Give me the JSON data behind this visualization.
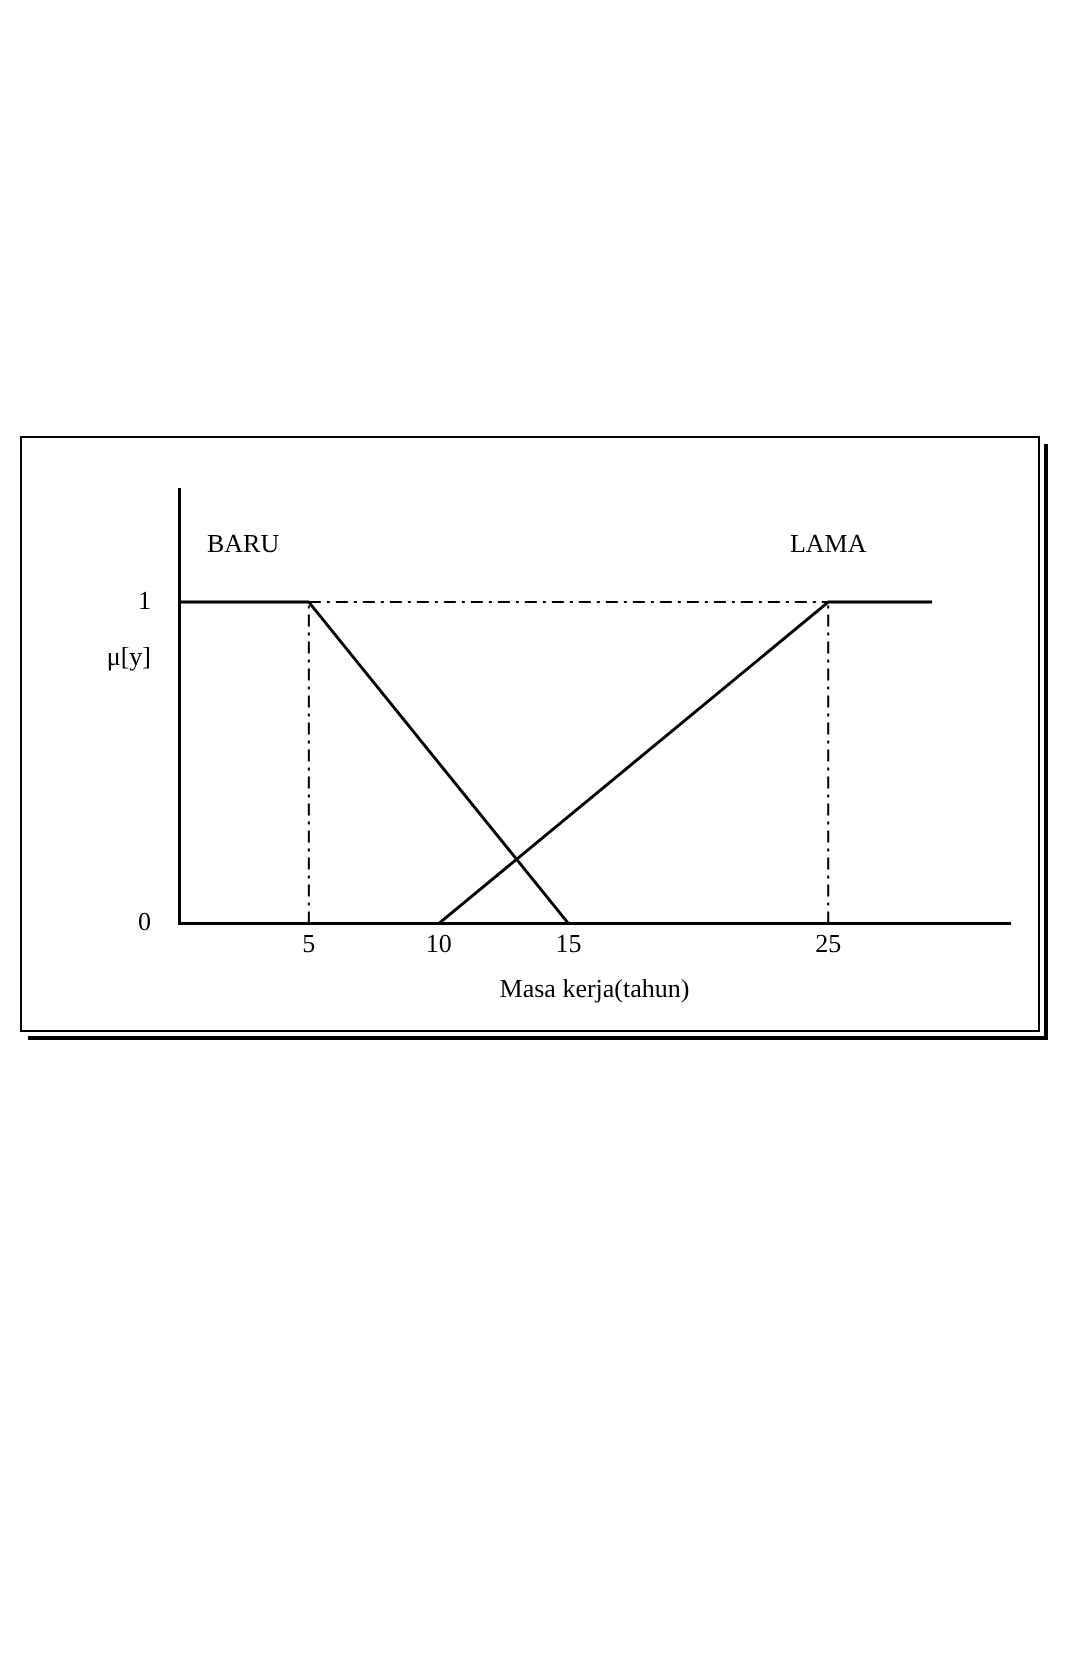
{
  "chart_data": {
    "type": "line",
    "xlabel": "Masa kerja(tahun)",
    "ylabel": "μ[y]",
    "xlim": [
      0,
      32
    ],
    "ylim": [
      0,
      1.35
    ],
    "xticks": [
      5,
      10,
      15,
      25
    ],
    "yticks": [
      0,
      1
    ],
    "grid": false,
    "legend": false,
    "marker": "none",
    "line_style": "solid",
    "series": [
      {
        "name": "BARU",
        "color": "#000000",
        "x": [
          0,
          5,
          15
        ],
        "values": [
          1,
          1,
          0
        ]
      },
      {
        "name": "LAMA",
        "color": "#000000",
        "x": [
          10,
          25,
          29
        ],
        "values": [
          0,
          1,
          1
        ]
      }
    ],
    "ref_lines": [
      {
        "axis": "x",
        "value": 5,
        "line_style": "dashdot",
        "color": "#000000"
      },
      {
        "axis": "x",
        "value": 25,
        "line_style": "dashdot",
        "color": "#000000"
      },
      {
        "axis": "y",
        "value": 1,
        "line_style": "dashdot",
        "color": "#000000"
      }
    ]
  }
}
